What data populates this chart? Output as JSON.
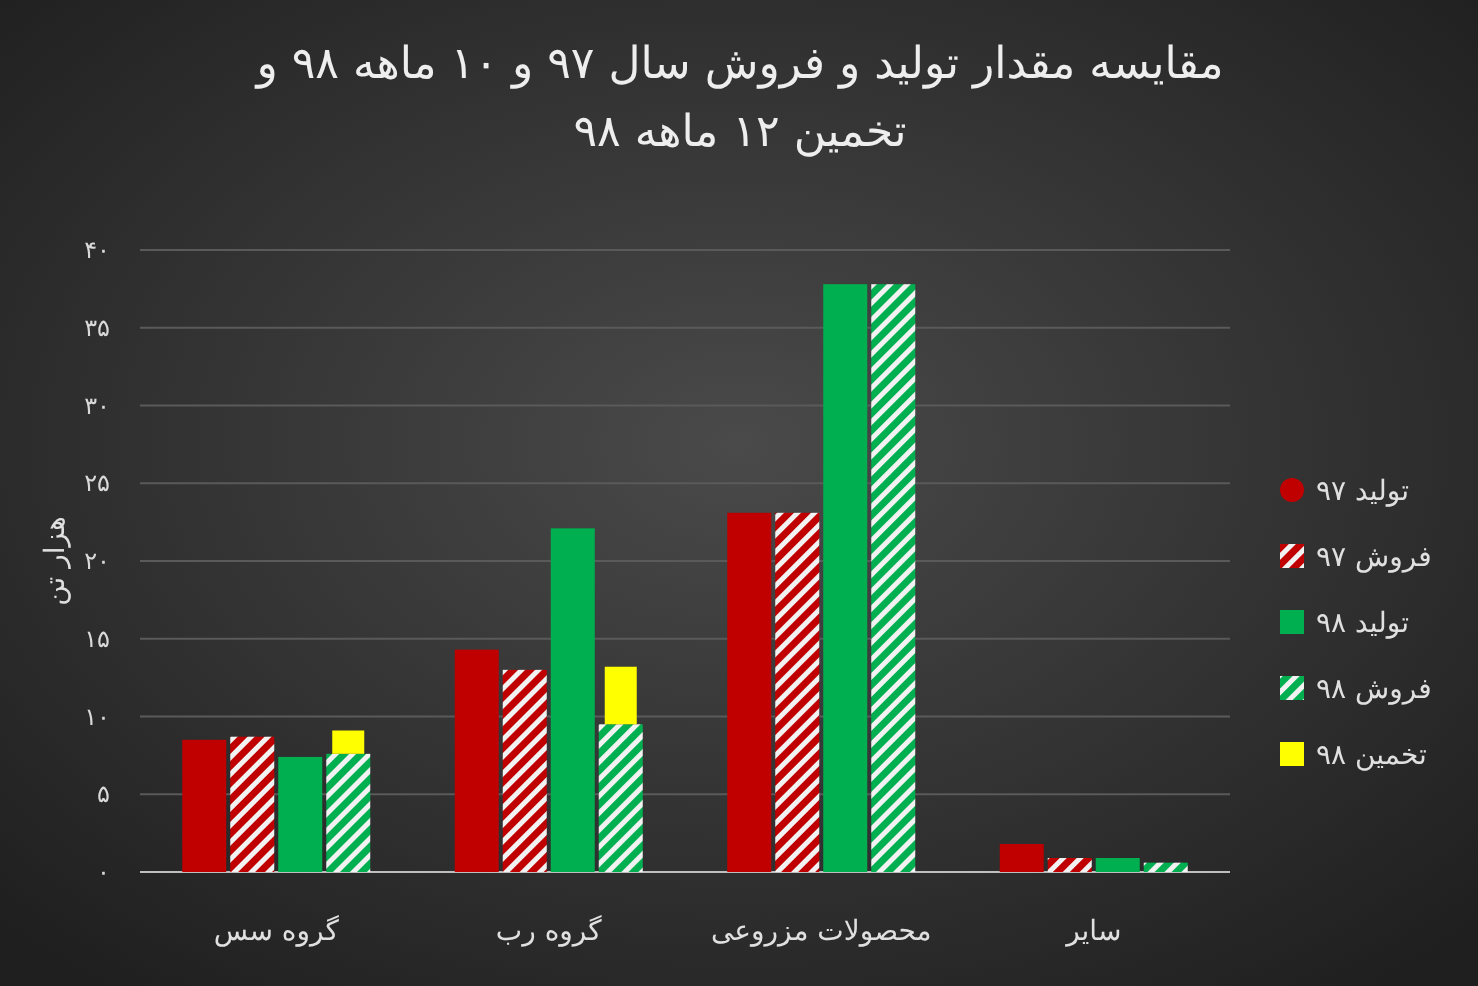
{
  "chart_data": {
    "type": "bar",
    "title": "مقایسه مقدار تولید و فروش سال ۹۷ و ۱۰ ماهه ۹۸ و تخمین ۱۲ ماهه ۹۸",
    "ylabel": "هزار تن",
    "categories": [
      "گروه سس",
      "گروه رب",
      "محصولات مزروعی",
      "سایر"
    ],
    "series": [
      {
        "name": "تولید ۹۷",
        "color": "#c00000",
        "values": [
          8.5,
          14.3,
          23.1,
          1.8
        ]
      },
      {
        "name": "فروش ۹۷",
        "color": "#c00000",
        "values": [
          8.7,
          13.0,
          23.1,
          0.9
        ]
      },
      {
        "name": "تولید ۹۸",
        "color": "#00b050",
        "values": [
          7.4,
          22.1,
          37.8,
          0.9
        ]
      },
      {
        "name": "فروش ۹۸",
        "color": "#00b050",
        "values": [
          7.6,
          9.5,
          37.8,
          0.6
        ]
      },
      {
        "name": "تخمین ۹۸",
        "color": "#ffff00",
        "base": [
          7.6,
          9.5,
          null,
          null
        ],
        "values": [
          1.5,
          3.7,
          null,
          null
        ]
      }
    ],
    "ylim": [
      0,
      40
    ],
    "yticks": [
      {
        "value": 0,
        "label": "۰"
      },
      {
        "value": 5,
        "label": "۵"
      },
      {
        "value": 10,
        "label": "۱۰"
      },
      {
        "value": 15,
        "label": "۱۵"
      },
      {
        "value": 20,
        "label": "۲۰"
      },
      {
        "value": 25,
        "label": "۲۵"
      },
      {
        "value": 30,
        "label": "۳۰"
      },
      {
        "value": 35,
        "label": "۳۵"
      },
      {
        "value": 40,
        "label": "۴۰"
      }
    ],
    "grid": "y",
    "legend": "right"
  }
}
